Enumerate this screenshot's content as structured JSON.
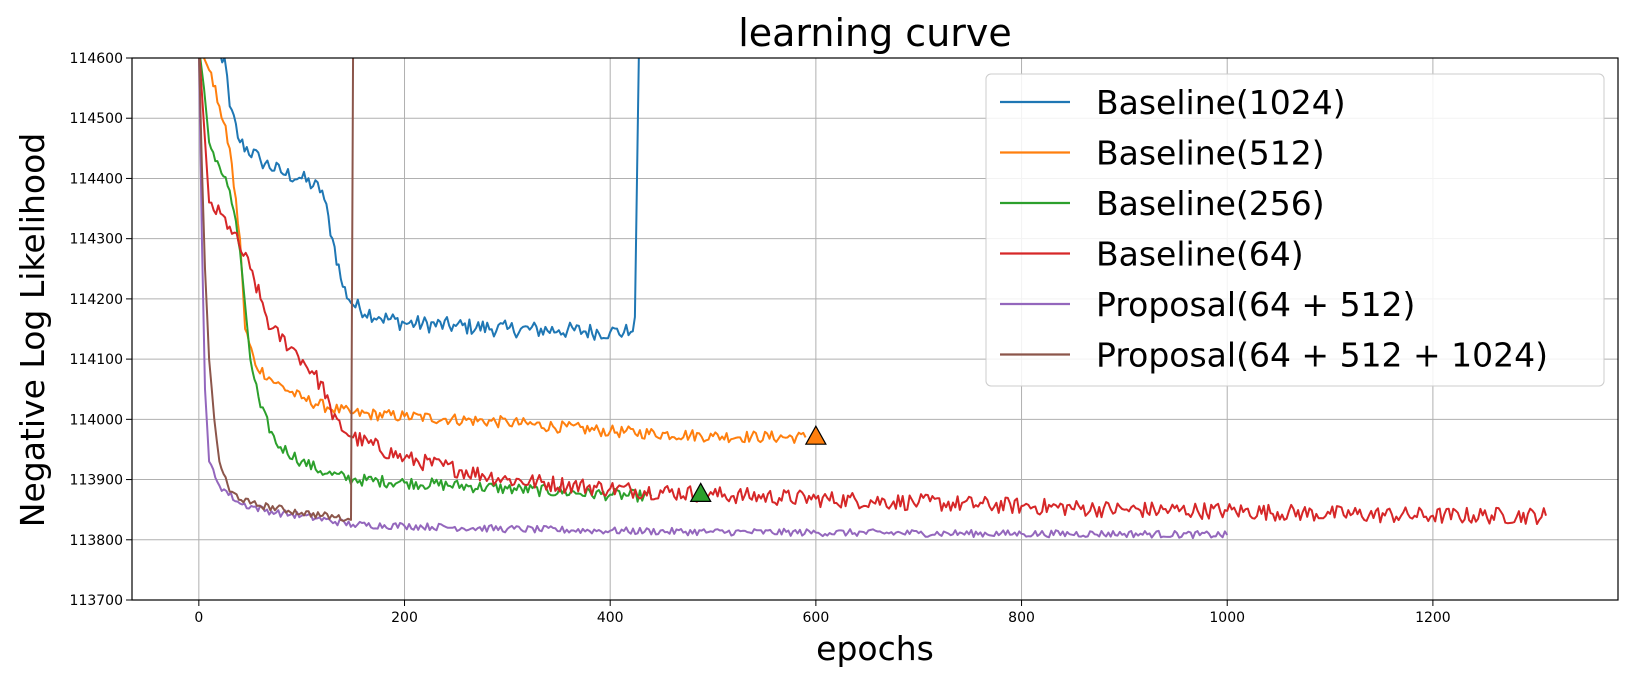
{
  "chart_data": {
    "type": "line",
    "title": "learning curve",
    "xlabel": "epochs",
    "ylabel": "Negative Log Likelihood",
    "xlim": [
      -65,
      1380
    ],
    "ylim": [
      113700,
      114600
    ],
    "x_ticks": [
      0,
      200,
      400,
      600,
      800,
      1000,
      1200
    ],
    "y_ticks": [
      113700,
      113800,
      113900,
      114000,
      114100,
      114200,
      114300,
      114400,
      114500,
      114600
    ],
    "grid": true,
    "legend_position": "top-right",
    "series": [
      {
        "name": "Baseline(1024)",
        "color": "#1f77b4",
        "points": [
          [
            0,
            114620
          ],
          [
            25,
            114600
          ],
          [
            30,
            114520
          ],
          [
            40,
            114460
          ],
          [
            60,
            114430
          ],
          [
            80,
            114410
          ],
          [
            100,
            114400
          ],
          [
            120,
            114380
          ],
          [
            130,
            114300
          ],
          [
            140,
            114220
          ],
          [
            150,
            114190
          ],
          [
            175,
            114170
          ],
          [
            200,
            114160
          ],
          [
            250,
            114155
          ],
          [
            300,
            114150
          ],
          [
            350,
            114148
          ],
          [
            400,
            114145
          ],
          [
            420,
            114145
          ],
          [
            424,
            114170
          ],
          [
            428,
            114620
          ]
        ],
        "noise": 14
      },
      {
        "name": "Baseline(512)",
        "color": "#ff7f0e",
        "points": [
          [
            0,
            114620
          ],
          [
            10,
            114580
          ],
          [
            20,
            114520
          ],
          [
            30,
            114450
          ],
          [
            40,
            114300
          ],
          [
            45,
            114150
          ],
          [
            55,
            114090
          ],
          [
            75,
            114060
          ],
          [
            100,
            114035
          ],
          [
            125,
            114020
          ],
          [
            150,
            114010
          ],
          [
            200,
            114005
          ],
          [
            300,
            113995
          ],
          [
            400,
            113980
          ],
          [
            500,
            113972
          ],
          [
            590,
            113970
          ]
        ],
        "noise": 10,
        "end_marker": {
          "x": 600,
          "y": 113972
        }
      },
      {
        "name": "Baseline(256)",
        "color": "#2ca02c",
        "points": [
          [
            0,
            114620
          ],
          [
            5,
            114550
          ],
          [
            10,
            114460
          ],
          [
            20,
            114420
          ],
          [
            30,
            114380
          ],
          [
            40,
            114280
          ],
          [
            50,
            114100
          ],
          [
            60,
            114020
          ],
          [
            75,
            113960
          ],
          [
            100,
            113930
          ],
          [
            125,
            113910
          ],
          [
            150,
            113900
          ],
          [
            200,
            113895
          ],
          [
            300,
            113885
          ],
          [
            400,
            113875
          ],
          [
            440,
            113872
          ]
        ],
        "noise": 10,
        "end_marker": {
          "x": 488,
          "y": 113877
        }
      },
      {
        "name": "Baseline(64)",
        "color": "#d62728",
        "points": [
          [
            0,
            114620
          ],
          [
            10,
            114360
          ],
          [
            30,
            114320
          ],
          [
            50,
            114250
          ],
          [
            60,
            114200
          ],
          [
            70,
            114150
          ],
          [
            90,
            114120
          ],
          [
            110,
            114080
          ],
          [
            125,
            114040
          ],
          [
            130,
            114000
          ],
          [
            150,
            113970
          ],
          [
            200,
            113935
          ],
          [
            300,
            113900
          ],
          [
            400,
            113885
          ],
          [
            500,
            113875
          ],
          [
            600,
            113868
          ],
          [
            700,
            113862
          ],
          [
            800,
            113856
          ],
          [
            900,
            113850
          ],
          [
            1000,
            113848
          ],
          [
            1100,
            113843
          ],
          [
            1200,
            113840
          ],
          [
            1310,
            113840
          ]
        ],
        "noise": 14
      },
      {
        "name": "Proposal(64 + 512)",
        "color": "#9467bd",
        "points": [
          [
            0,
            114620
          ],
          [
            3,
            114300
          ],
          [
            6,
            114050
          ],
          [
            10,
            113930
          ],
          [
            20,
            113890
          ],
          [
            40,
            113860
          ],
          [
            75,
            113845
          ],
          [
            100,
            113840
          ],
          [
            150,
            113825
          ],
          [
            200,
            113823
          ],
          [
            300,
            113818
          ],
          [
            400,
            113815
          ],
          [
            500,
            113813
          ],
          [
            600,
            113812
          ],
          [
            700,
            113811
          ],
          [
            800,
            113810
          ],
          [
            900,
            113810
          ],
          [
            1000,
            113808
          ]
        ],
        "noise": 6
      },
      {
        "name": "Proposal(64 + 512 + 1024)",
        "color": "#8c564b",
        "points": [
          [
            0,
            114620
          ],
          [
            3,
            114420
          ],
          [
            6,
            114250
          ],
          [
            10,
            114100
          ],
          [
            15,
            114000
          ],
          [
            20,
            113930
          ],
          [
            30,
            113880
          ],
          [
            50,
            113860
          ],
          [
            100,
            113845
          ],
          [
            145,
            113835
          ],
          [
            148,
            113833
          ],
          [
            150,
            114620
          ]
        ],
        "noise": 6
      }
    ]
  }
}
